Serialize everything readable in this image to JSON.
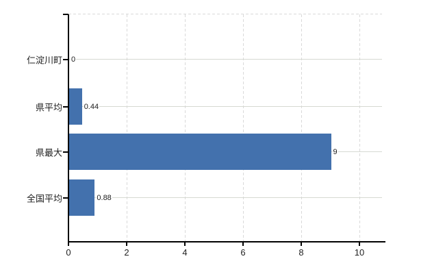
{
  "chart_data": {
    "type": "bar",
    "orientation": "horizontal",
    "title": "",
    "xlabel": "",
    "ylabel": "",
    "categories": [
      "仁淀川町",
      "県平均",
      "県最大",
      "全国平均"
    ],
    "values": [
      0,
      0.44,
      9,
      0.88
    ],
    "value_labels": [
      "0",
      "0.44",
      "9",
      "0.88"
    ],
    "x_ticks": [
      0,
      2,
      4,
      6,
      8,
      10
    ],
    "x_tick_labels": [
      "0",
      "2",
      "4",
      "6",
      "8",
      "10"
    ],
    "xlim": [
      0,
      10.8
    ],
    "legend": "none",
    "grid": {
      "horizontal": "solid",
      "vertical": "dashed",
      "top_border": "dashed"
    },
    "colors": {
      "bar": "#4371ad",
      "axis": "#000000",
      "grid_horizontal": "#d6d9d2",
      "grid_vertical": "#d9d9d9",
      "text": "#222222"
    }
  }
}
